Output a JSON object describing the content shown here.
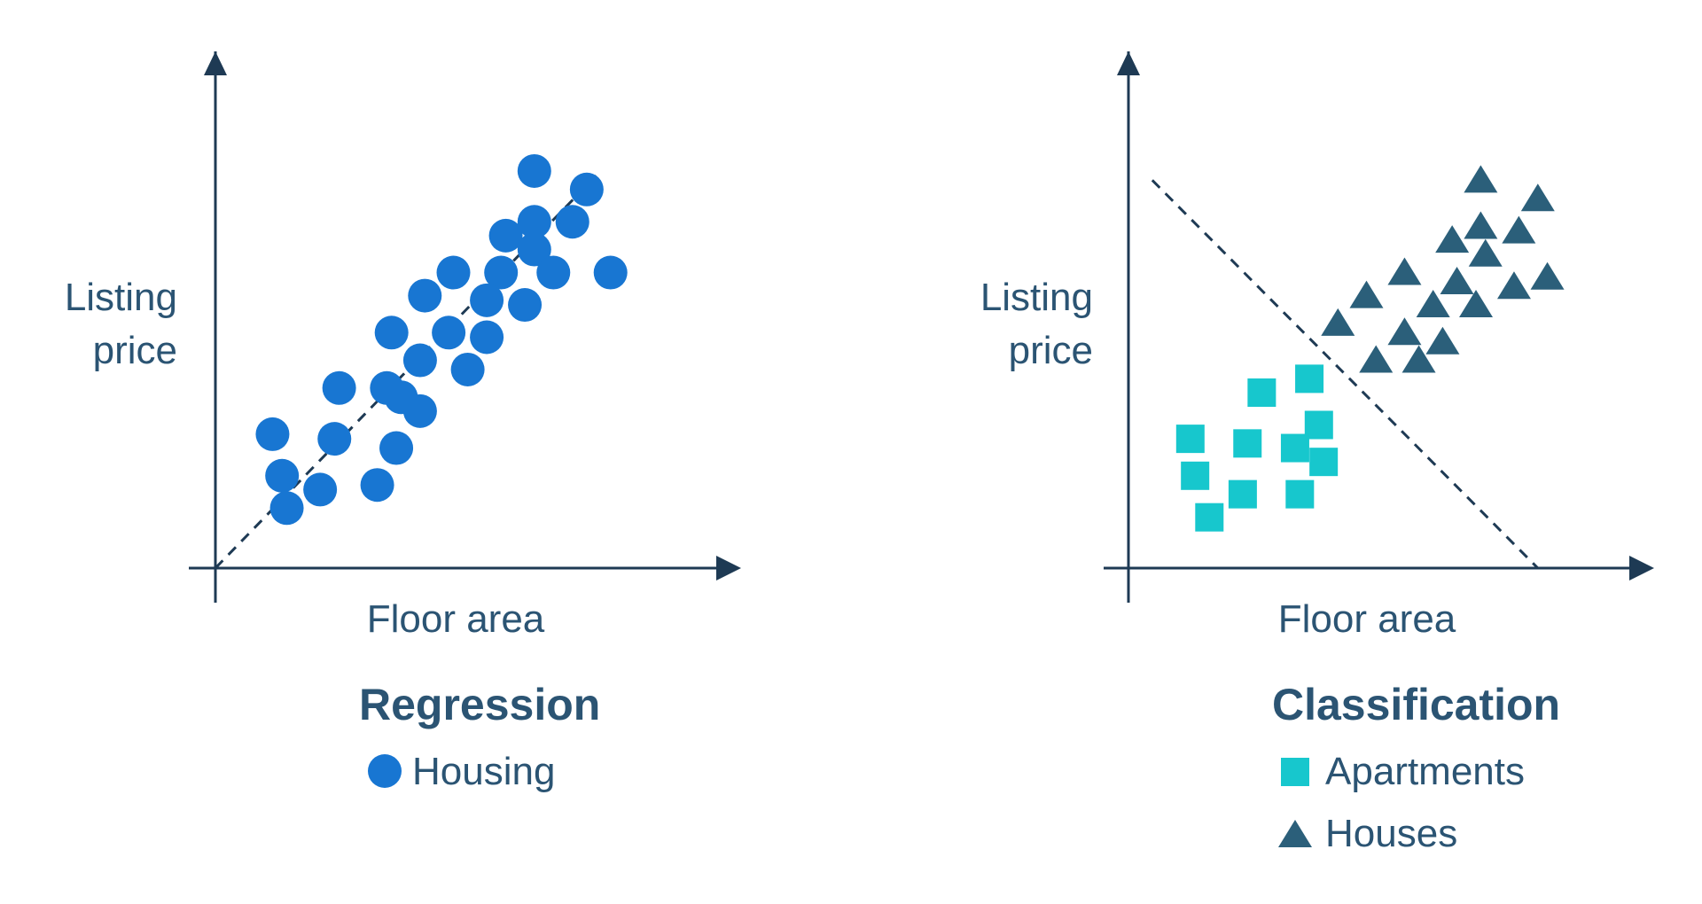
{
  "colors": {
    "axis": "#1e3a54",
    "text": "#2b5473",
    "housing": "#1876d2",
    "apartments": "#17c7cd",
    "houses": "#2b5f7a"
  },
  "chart_data": [
    {
      "type": "scatter",
      "title": "Regression",
      "xlabel": "Floor area",
      "ylabel": [
        "Listing",
        "price"
      ],
      "xlim": [
        0,
        100
      ],
      "ylim": [
        0,
        100
      ],
      "grid": false,
      "legend_position": "below",
      "trendline": {
        "style": "dashed",
        "from": [
          0,
          0
        ],
        "to": [
          80,
          85
        ]
      },
      "series": [
        {
          "name": "Housing",
          "marker": "circle",
          "points": [
            [
              67,
              86
            ],
            [
              78,
              82
            ],
            [
              67,
              75
            ],
            [
              75,
              75
            ],
            [
              61,
              72
            ],
            [
              67,
              69
            ],
            [
              50,
              64
            ],
            [
              60,
              64
            ],
            [
              71,
              64
            ],
            [
              83,
              64
            ],
            [
              44,
              59
            ],
            [
              57,
              58
            ],
            [
              65,
              57
            ],
            [
              37,
              51
            ],
            [
              49,
              51
            ],
            [
              57,
              50
            ],
            [
              43,
              45
            ],
            [
              53,
              43
            ],
            [
              26,
              39
            ],
            [
              36,
              39
            ],
            [
              39,
              37
            ],
            [
              43,
              34
            ],
            [
              12,
              29
            ],
            [
              25,
              28
            ],
            [
              38,
              26
            ],
            [
              14,
              20
            ],
            [
              22,
              17
            ],
            [
              34,
              18
            ],
            [
              15,
              13
            ]
          ]
        }
      ]
    },
    {
      "type": "scatter",
      "title": "Classification",
      "xlabel": "Floor area",
      "ylabel": [
        "Listing",
        "price"
      ],
      "xlim": [
        0,
        100
      ],
      "ylim": [
        0,
        100
      ],
      "grid": false,
      "legend_position": "below",
      "decision_boundary": {
        "style": "dashed",
        "from": [
          5,
          84
        ],
        "to": [
          86,
          0
        ]
      },
      "series": [
        {
          "name": "Apartments",
          "marker": "square",
          "points": [
            [
              38,
              41
            ],
            [
              28,
              38
            ],
            [
              40,
              31
            ],
            [
              13,
              28
            ],
            [
              35,
              26
            ],
            [
              25,
              27
            ],
            [
              41,
              23
            ],
            [
              14,
              20
            ],
            [
              24,
              16
            ],
            [
              36,
              16
            ],
            [
              17,
              11
            ]
          ]
        },
        {
          "name": "Houses",
          "marker": "triangle",
          "points": [
            [
              74,
              84
            ],
            [
              86,
              80
            ],
            [
              74,
              74
            ],
            [
              82,
              73
            ],
            [
              68,
              71
            ],
            [
              75,
              68
            ],
            [
              58,
              64
            ],
            [
              69,
              62
            ],
            [
              81,
              61
            ],
            [
              88,
              63
            ],
            [
              50,
              59
            ],
            [
              64,
              57
            ],
            [
              73,
              57
            ],
            [
              44,
              53
            ],
            [
              58,
              51
            ],
            [
              66,
              49
            ],
            [
              52,
              45
            ],
            [
              61,
              45
            ]
          ]
        }
      ]
    }
  ]
}
